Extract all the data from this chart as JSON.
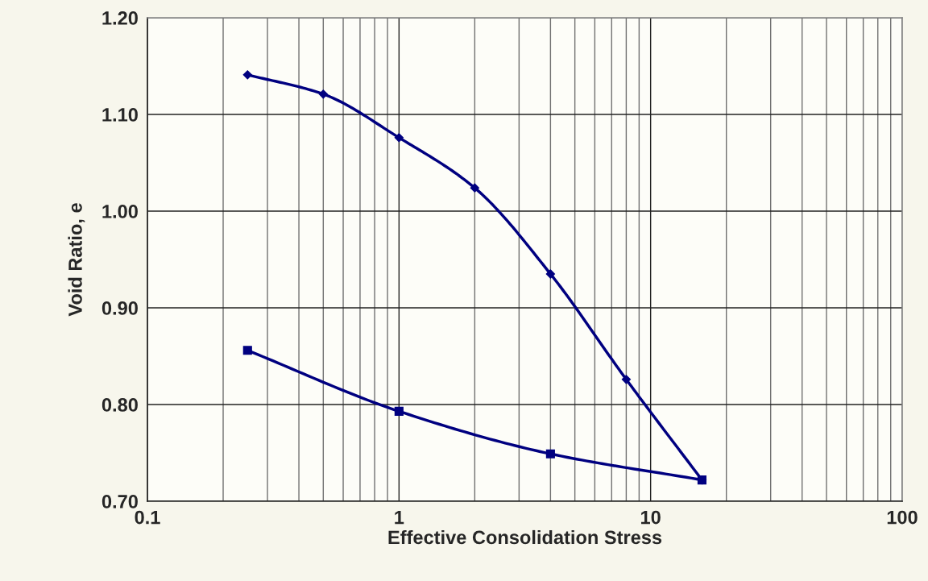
{
  "chart_data": {
    "type": "line",
    "xlabel": "Effective Consolidation Stress",
    "ylabel": "Void Ratio, e",
    "log": "x",
    "xlim": [
      0.1,
      100
    ],
    "xticks": [
      0.1,
      1,
      10,
      100
    ],
    "ylim": [
      0.7,
      1.2
    ],
    "yticks": [
      {
        "value": 0.7,
        "label": "0.70"
      },
      {
        "value": 0.8,
        "label": "0.80"
      },
      {
        "value": 0.9,
        "label": "0.90"
      },
      {
        "value": 1.0,
        "label": "1.00"
      },
      {
        "value": 1.1,
        "label": "1.10"
      },
      {
        "value": 1.2,
        "label": "1.20"
      }
    ],
    "grid": true,
    "legend": false,
    "series": [
      {
        "color": "#000080",
        "marker": "diamond",
        "x": [
          0.25,
          0.5,
          1,
          2,
          4,
          8,
          16
        ],
        "values": [
          1.141,
          1.121,
          1.076,
          1.024,
          0.935,
          0.826,
          0.722
        ]
      },
      {
        "color": "#000080",
        "marker": "square",
        "x": [
          0.25,
          1,
          4,
          16
        ],
        "values": [
          0.856,
          0.793,
          0.749,
          0.722
        ]
      }
    ]
  }
}
